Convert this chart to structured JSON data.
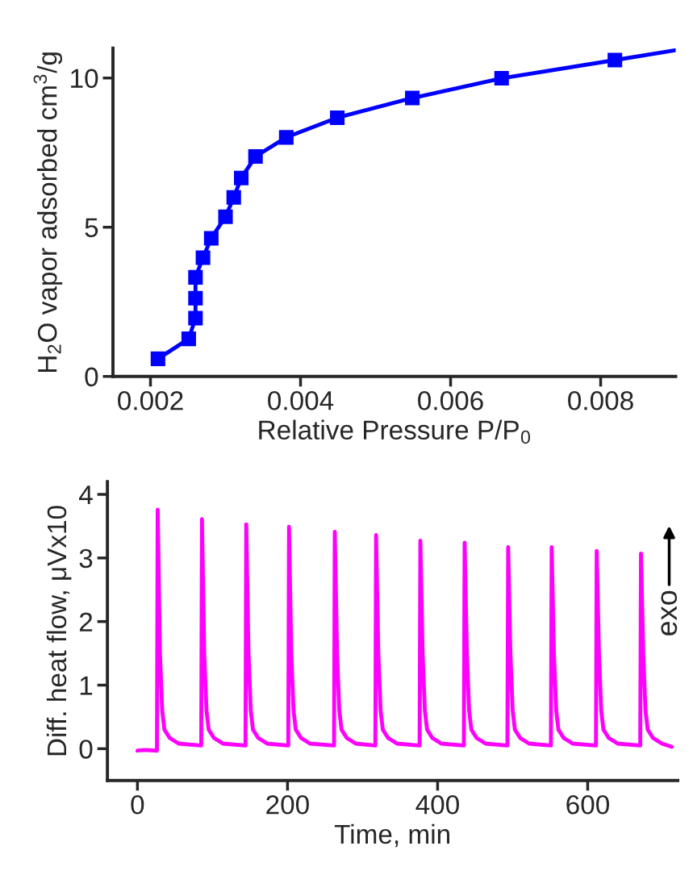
{
  "chart_data": [
    {
      "type": "line",
      "xlabel": "Relative Pressure P/P$_{0}$",
      "ylabel": "H$_{2}$O vapor adsorbed cm$^{3}$/g",
      "xlim": [
        0.0015,
        0.009
      ],
      "ylim": [
        0,
        11
      ],
      "xticks": [
        0.002,
        0.004,
        0.006,
        0.008
      ],
      "yticks": [
        0,
        5,
        10
      ],
      "line_style": "solid",
      "series": [
        {
          "color": "#0000ff",
          "marker": "square",
          "x": [
            0.0021,
            0.00251,
            0.0026,
            0.0026,
            0.0026,
            0.0027,
            0.00281,
            0.003,
            0.00311,
            0.00321,
            0.0034,
            0.00381,
            0.00449,
            0.00549,
            0.00668,
            0.00819
          ],
          "values": [
            0.59,
            1.26,
            1.95,
            2.62,
            3.32,
            3.98,
            4.63,
            5.35,
            6.0,
            6.65,
            7.37,
            8.01,
            8.67,
            9.33,
            9.99,
            10.6
          ]
        },
        {
          "color": "#0000ff",
          "marker": "none",
          "x": [
            0.00819,
            0.00899
          ],
          "values": [
            10.6,
            10.93
          ]
        }
      ]
    },
    {
      "type": "line",
      "xlabel": "Time, min",
      "ylabel": "Diff. heat flow, μVx10",
      "xlim": [
        -40,
        720
      ],
      "ylim": [
        -0.5,
        4.2
      ],
      "xticks": [
        0,
        200,
        400,
        600
      ],
      "yticks": [
        0,
        1,
        2,
        3,
        4
      ],
      "line_style": "solid",
      "marker": "none",
      "annotations": [
        "exo"
      ],
      "series": [
        {
          "color": "#ff00ff",
          "x": [
            0,
            10,
            26,
            27,
            30,
            33,
            36,
            43,
            55,
            85,
            86,
            89,
            92,
            95,
            102,
            114,
            144,
            145,
            148,
            151,
            154,
            161,
            173,
            201,
            202,
            205,
            208,
            211,
            218,
            230,
            262,
            263,
            266,
            269,
            272,
            279,
            291,
            317,
            318,
            321,
            324,
            327,
            334,
            346,
            376,
            377,
            380,
            383,
            386,
            393,
            405,
            435,
            436,
            439,
            442,
            445,
            452,
            464,
            493,
            494,
            497,
            500,
            503,
            510,
            522,
            551,
            552,
            555,
            558,
            561,
            568,
            580,
            611,
            612,
            615,
            618,
            621,
            628,
            640,
            670,
            671,
            674,
            677,
            680,
            687,
            699,
            712
          ],
          "values": [
            -0.03,
            -0.02,
            -0.03,
            3.76,
            1.5,
            0.6,
            0.3,
            0.17,
            0.08,
            0.05,
            3.61,
            1.5,
            0.6,
            0.3,
            0.17,
            0.08,
            0.05,
            3.53,
            1.5,
            0.6,
            0.3,
            0.17,
            0.08,
            0.05,
            3.49,
            1.5,
            0.6,
            0.3,
            0.17,
            0.08,
            0.05,
            3.41,
            1.5,
            0.6,
            0.3,
            0.17,
            0.08,
            0.05,
            3.36,
            1.5,
            0.6,
            0.3,
            0.17,
            0.08,
            0.05,
            3.27,
            1.5,
            0.6,
            0.3,
            0.17,
            0.08,
            0.05,
            3.24,
            1.5,
            0.6,
            0.3,
            0.17,
            0.08,
            0.05,
            3.17,
            1.5,
            0.6,
            0.3,
            0.17,
            0.08,
            0.05,
            3.17,
            1.5,
            0.6,
            0.3,
            0.17,
            0.08,
            0.05,
            3.11,
            1.5,
            0.6,
            0.3,
            0.17,
            0.08,
            0.05,
            3.07,
            1.5,
            0.6,
            0.3,
            0.17,
            0.08,
            0.03
          ]
        }
      ]
    }
  ]
}
